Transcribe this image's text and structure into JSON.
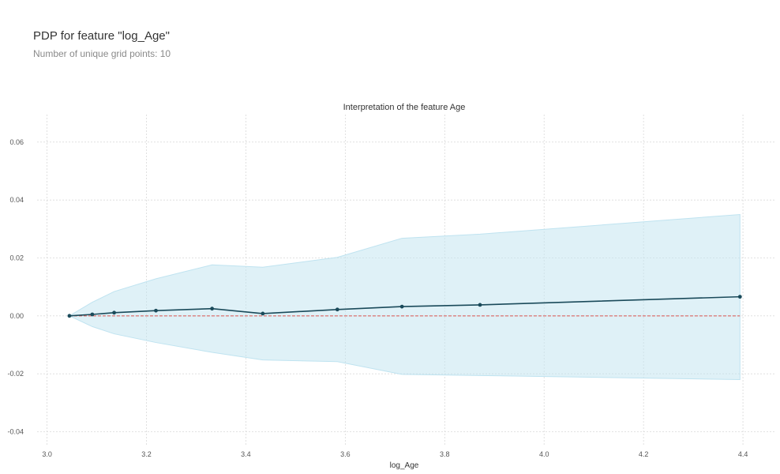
{
  "header": {
    "title": "PDP for feature \"log_Age\"",
    "subtitle": "Number of unique grid points: 10"
  },
  "colors": {
    "line": "#1a4a5a",
    "band": "#bfe3f0",
    "baseline": "#d9534f",
    "grid": "#d9d9d9"
  },
  "chart_data": {
    "type": "line",
    "title": "Interpretation of the feature Age",
    "xlabel": "log_Age",
    "ylabel": "",
    "xlim": [
      2.98,
      4.465
    ],
    "ylim": [
      -0.0445,
      0.0695
    ],
    "xticks": [
      3.0,
      3.2,
      3.4,
      3.6,
      3.8,
      4.0,
      4.2,
      4.4
    ],
    "yticks": [
      -0.04,
      -0.02,
      0.0,
      0.02,
      0.04,
      0.06
    ],
    "grid": true,
    "series": [
      {
        "x": [
          3.045,
          3.091,
          3.135,
          3.219,
          3.332,
          3.434,
          3.584,
          3.714,
          3.871,
          4.394
        ],
        "values": [
          0.0,
          0.0005,
          0.0011,
          0.0018,
          0.0025,
          0.0008,
          0.0022,
          0.0032,
          0.0038,
          0.0066
        ],
        "upper": [
          0.0,
          0.0047,
          0.0084,
          0.0128,
          0.0176,
          0.0168,
          0.0202,
          0.0268,
          0.0282,
          0.035
        ],
        "lower": [
          0.0,
          -0.0037,
          -0.0062,
          -0.0092,
          -0.0126,
          -0.0152,
          -0.0158,
          -0.0202,
          -0.0206,
          -0.022
        ]
      }
    ],
    "baseline": 0.0
  }
}
